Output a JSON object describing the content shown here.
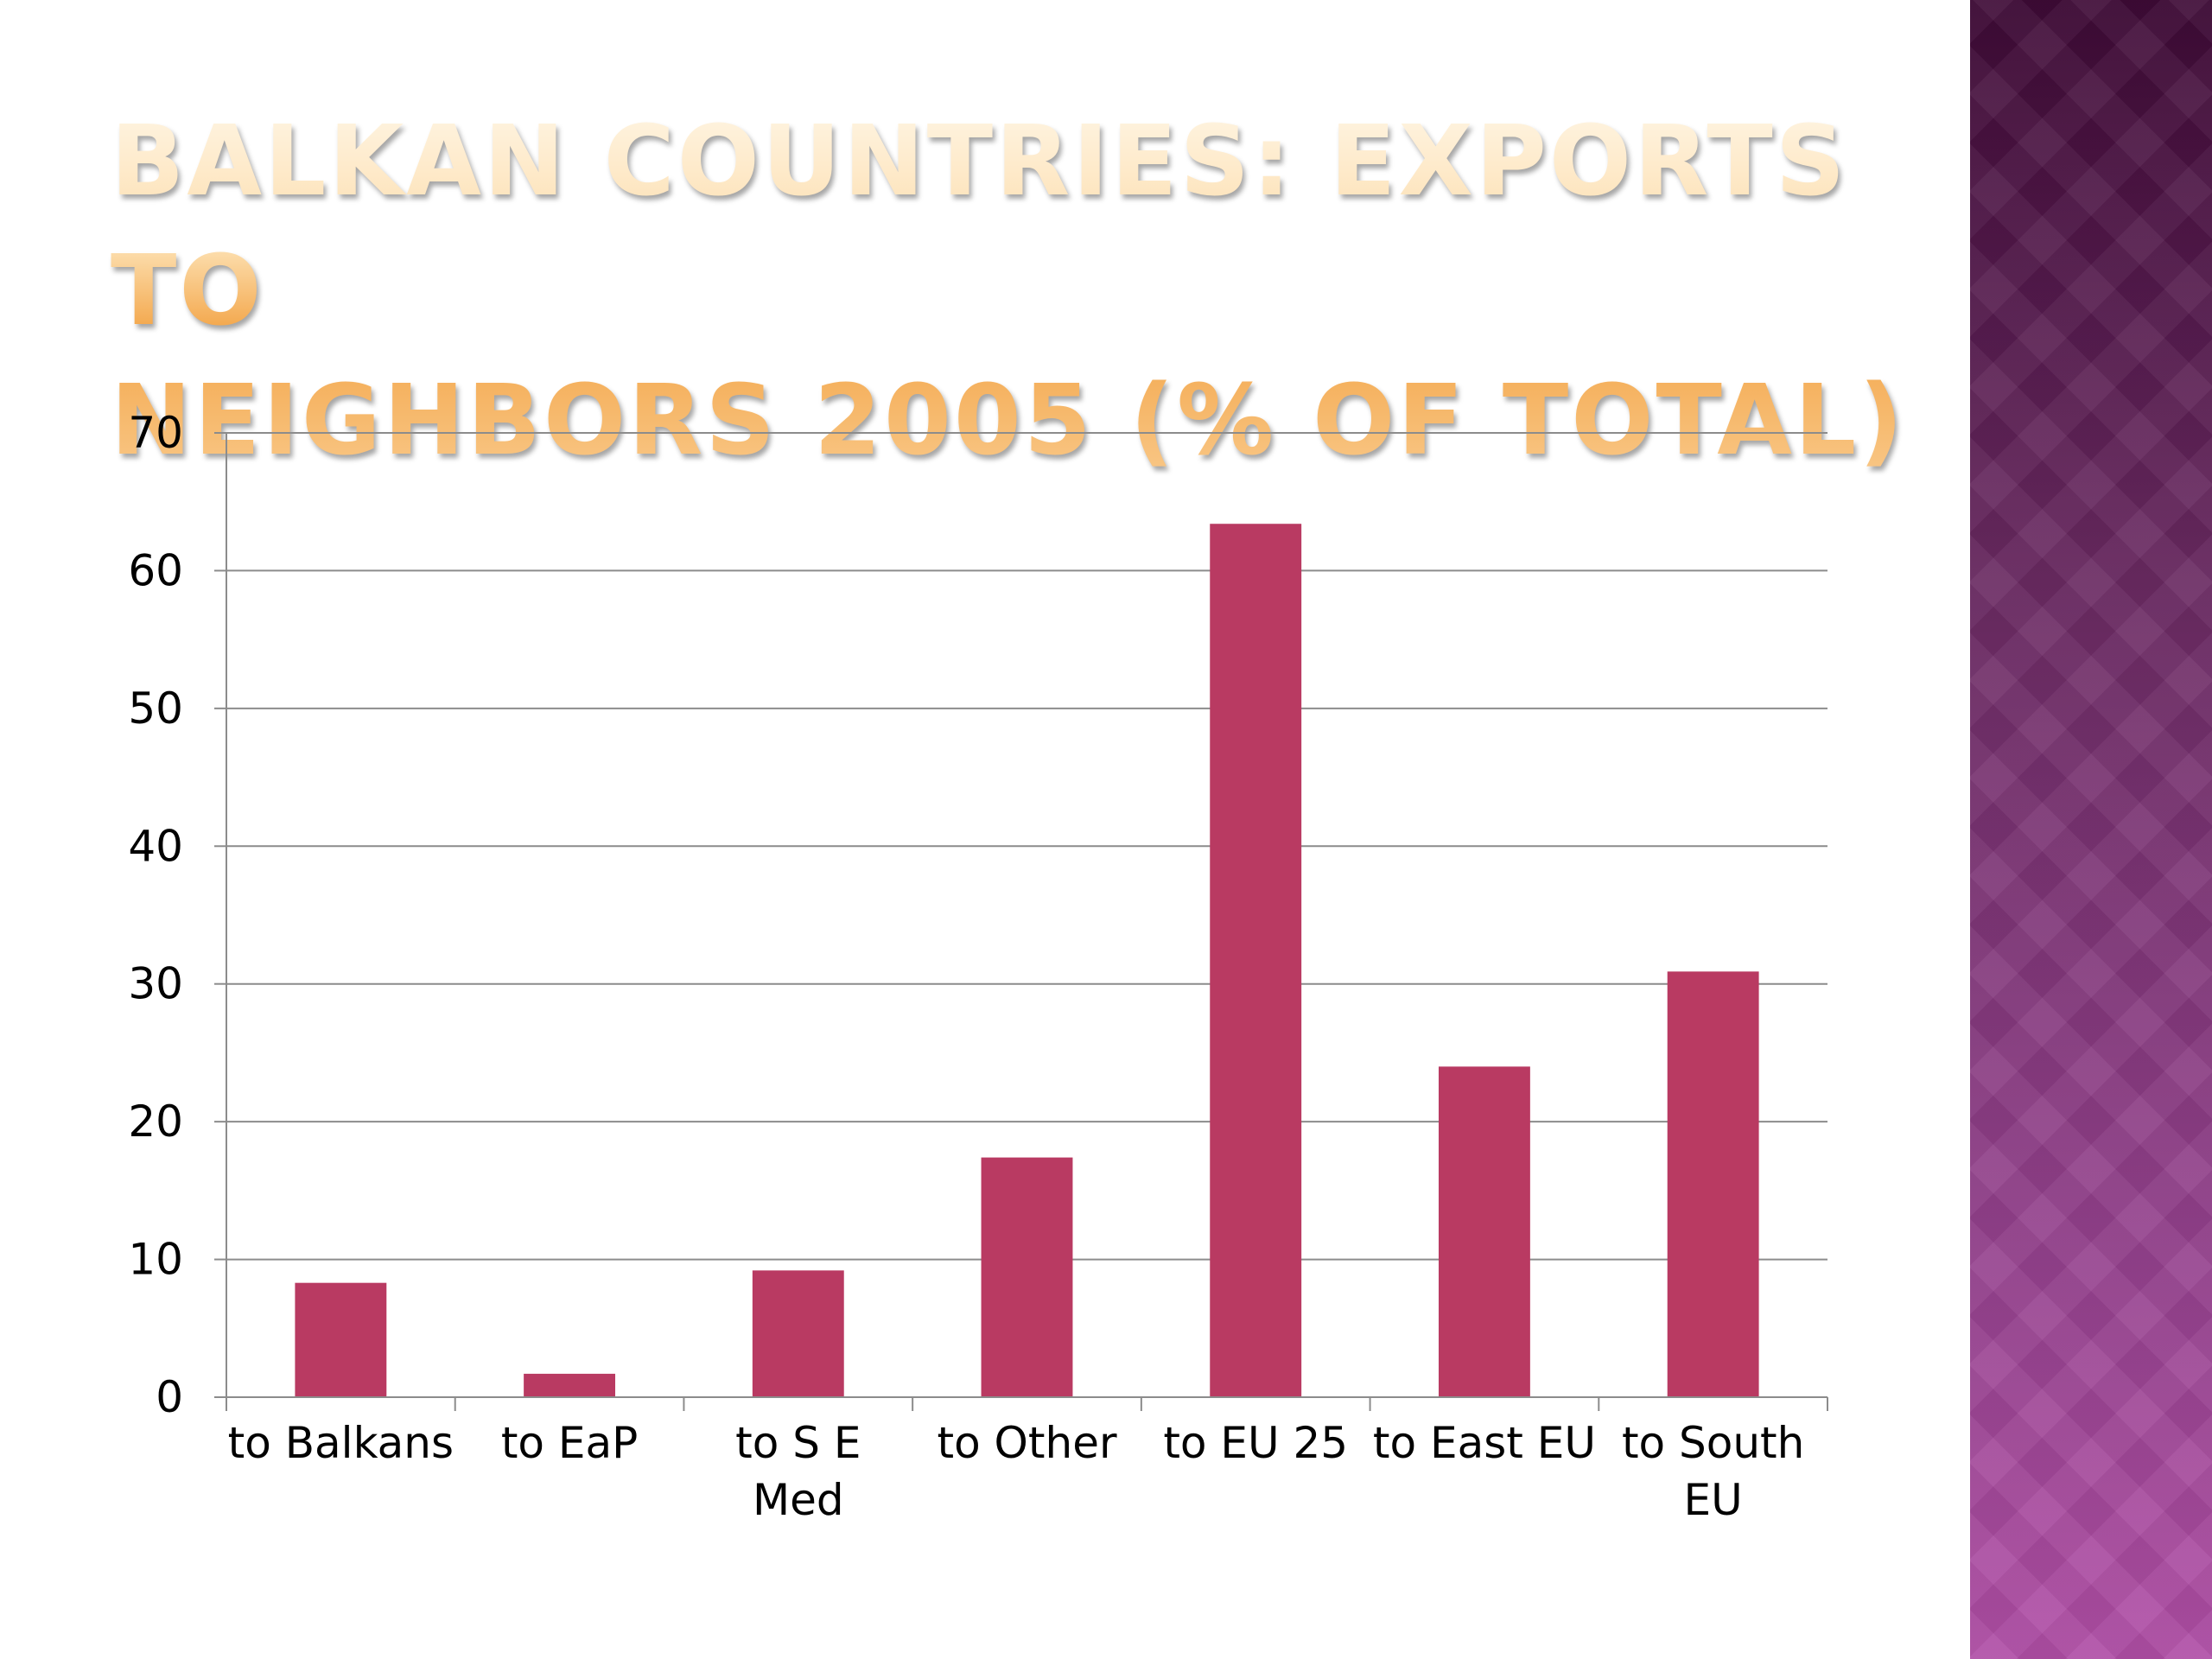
{
  "slide": {
    "title": "Balkan Countries: Exports to\nneighbors 2005 (% of total)"
  },
  "colors": {
    "bar": "#b93a62",
    "grid": "#8c8c8c",
    "side_band_top": "#3e0a36",
    "side_band_bottom": "#b04ea6",
    "title": "#f6b04e"
  },
  "chart_data": {
    "type": "bar",
    "categories": [
      "to Balkans",
      "to EaP",
      "to S E Med",
      "to Other",
      "to EU 25",
      "to East EU",
      "to South EU"
    ],
    "category_lines": [
      [
        "to Balkans"
      ],
      [
        "to EaP"
      ],
      [
        "to S E",
        "Med"
      ],
      [
        "to Other"
      ],
      [
        "to EU 25"
      ],
      [
        "to East EU"
      ],
      [
        "to South",
        "EU"
      ]
    ],
    "values": [
      8.3,
      1.7,
      9.2,
      17.4,
      63.4,
      24.0,
      30.9
    ],
    "yticks": [
      0,
      10,
      20,
      30,
      40,
      50,
      60,
      70
    ],
    "ylim": [
      0,
      70
    ],
    "grid": true,
    "legend": "none"
  }
}
